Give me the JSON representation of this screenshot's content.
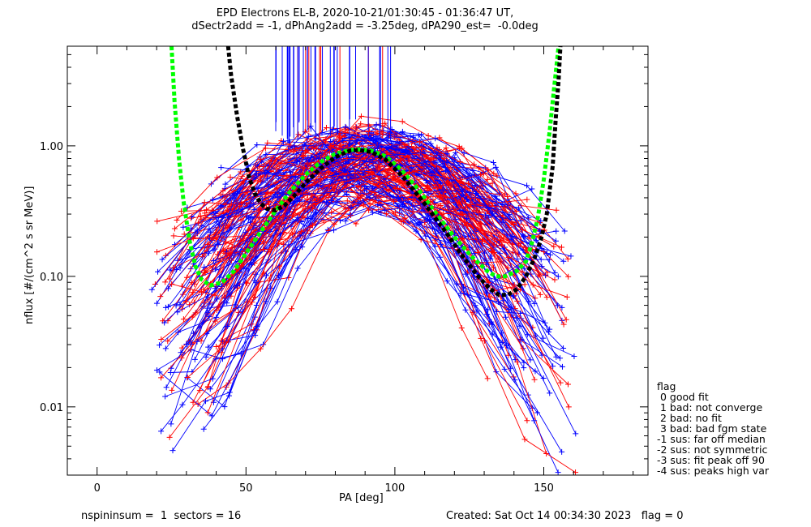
{
  "chart_data": {
    "type": "line",
    "title_line1": "EPD Electrons EL-B, 2020-10-21/01:30:45 - 01:36:47 UT,",
    "title_line2": "dSectr2add = -1, dPhAng2add = -3.25deg, dPA290_est=  -0.0deg",
    "xlabel": "PA [deg]",
    "ylabel": "nflux [#/(cm^2 s sr MeV)]",
    "xlim": [
      -10,
      185
    ],
    "ylim": [
      0.003,
      5.8
    ],
    "yscale": "log",
    "x_ticks": [
      0,
      50,
      100,
      150
    ],
    "y_ticks": [
      "0.01",
      "0.10",
      "1.00"
    ],
    "y_tick_values": [
      0.01,
      0.1,
      1.0
    ],
    "series": [],
    "fit_curves": {
      "black": [
        [
          44,
          5.8
        ],
        [
          45,
          3.5
        ],
        [
          47,
          1.7
        ],
        [
          49,
          0.95
        ],
        [
          51,
          0.58
        ],
        [
          53,
          0.43
        ],
        [
          55,
          0.36
        ],
        [
          57,
          0.33
        ],
        [
          60,
          0.32
        ],
        [
          63,
          0.35
        ],
        [
          66,
          0.41
        ],
        [
          70,
          0.52
        ],
        [
          75,
          0.67
        ],
        [
          80,
          0.82
        ],
        [
          85,
          0.92
        ],
        [
          88,
          0.93
        ],
        [
          92,
          0.9
        ],
        [
          97,
          0.78
        ],
        [
          103,
          0.57
        ],
        [
          110,
          0.36
        ],
        [
          117,
          0.22
        ],
        [
          123,
          0.14
        ],
        [
          128,
          0.1
        ],
        [
          132,
          0.08
        ],
        [
          135,
          0.072
        ],
        [
          138,
          0.072
        ],
        [
          141,
          0.08
        ],
        [
          144,
          0.1
        ],
        [
          147,
          0.14
        ],
        [
          149,
          0.19
        ],
        [
          151,
          0.3
        ],
        [
          153,
          0.7
        ],
        [
          154,
          1.6
        ],
        [
          155,
          3.2
        ],
        [
          155.6,
          5.8
        ]
      ],
      "green": [
        [
          25,
          5.8
        ],
        [
          26,
          2.2
        ],
        [
          27.5,
          0.8
        ],
        [
          29,
          0.38
        ],
        [
          31,
          0.19
        ],
        [
          33,
          0.12
        ],
        [
          35,
          0.095
        ],
        [
          38,
          0.085
        ],
        [
          42,
          0.09
        ],
        [
          46,
          0.11
        ],
        [
          50,
          0.15
        ],
        [
          55,
          0.22
        ],
        [
          60,
          0.32
        ],
        [
          65,
          0.45
        ],
        [
          70,
          0.6
        ],
        [
          75,
          0.75
        ],
        [
          80,
          0.87
        ],
        [
          85,
          0.93
        ],
        [
          88,
          0.94
        ],
        [
          92,
          0.92
        ],
        [
          97,
          0.83
        ],
        [
          102,
          0.66
        ],
        [
          108,
          0.46
        ],
        [
          114,
          0.3
        ],
        [
          120,
          0.2
        ],
        [
          126,
          0.14
        ],
        [
          131,
          0.11
        ],
        [
          134,
          0.1
        ],
        [
          137,
          0.1
        ],
        [
          141,
          0.11
        ],
        [
          144,
          0.13
        ],
        [
          146,
          0.18
        ],
        [
          148,
          0.28
        ],
        [
          150,
          0.55
        ],
        [
          152,
          1.3
        ],
        [
          153.5,
          2.8
        ],
        [
          155,
          5.8
        ]
      ]
    },
    "grid": false
  },
  "legend": {
    "title": "flag",
    "items": [
      " 0 good fit",
      " 1 bad: not converge",
      " 2 bad: no fit",
      " 3 bad: bad fgm state",
      "-1 sus: far off median",
      "-2 sus: not symmetric",
      "-3 sus: fit peak off 90",
      "-4 sus: peaks high var"
    ]
  },
  "footer": {
    "left": "nspininsum =  1  sectors = 16",
    "right": "Created: Sat Oct 14 00:34:30 2023   flag = 0"
  },
  "colors": {
    "axis": "#000000",
    "red_traces": "#ff0000",
    "blue_traces": "#0000ff",
    "fit_black": "#000000",
    "fit_green": "#00ff00"
  }
}
